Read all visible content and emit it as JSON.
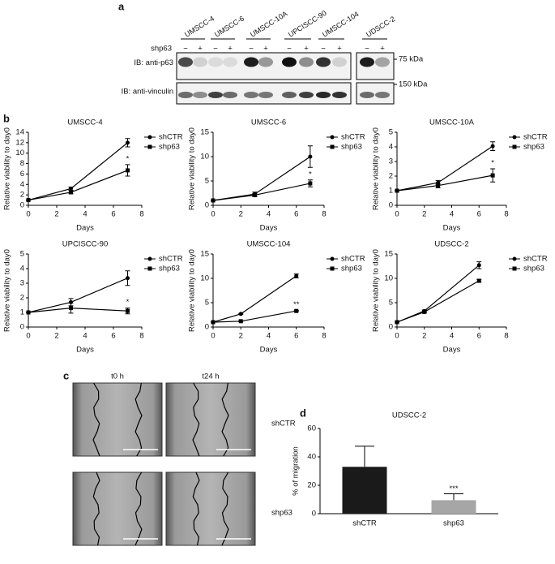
{
  "panels": {
    "a": "a",
    "b": "b",
    "c": "c",
    "d": "d"
  },
  "blot": {
    "cell_lines": [
      "UMSCC-4",
      "UMSCC-6",
      "UMSCC-10A",
      "UPCISCC-90",
      "UMSCC-104",
      "UDSCC-2"
    ],
    "shp63_label": "shp63",
    "lanes": [
      "−",
      "+",
      "−",
      "+",
      "−",
      "+",
      "−",
      "+",
      "−",
      "+",
      "−",
      "+"
    ],
    "rows": [
      {
        "label": "IB: anti-p63",
        "marker": "75 kDa"
      },
      {
        "label": "IB: anti-vinculin",
        "marker": "150 kDa"
      }
    ]
  },
  "migration_images": {
    "columns": [
      "t0 h",
      "t24 h"
    ],
    "rows": [
      "shCTR",
      "shp63"
    ]
  },
  "chart_data": [
    {
      "type": "line",
      "title": "UMSCC-4",
      "x_label": "Days",
      "y_label": "Relative viability to day0",
      "x": [
        0,
        3,
        7
      ],
      "xlim": [
        0,
        8
      ],
      "xticks": [
        0,
        2,
        4,
        6,
        8
      ],
      "ylim": [
        0,
        14
      ],
      "yticks": [
        0,
        2,
        4,
        6,
        8,
        10,
        12,
        14
      ],
      "series": [
        {
          "name": "shCTR",
          "color": "#000000",
          "marker": "circle",
          "values": [
            1,
            3.2,
            12
          ],
          "errors": [
            0,
            0.3,
            0.8
          ]
        },
        {
          "name": "shp63",
          "color": "#000000",
          "marker": "square",
          "values": [
            1,
            2.5,
            6.7
          ],
          "errors": [
            0,
            0.3,
            1.1
          ]
        }
      ],
      "significance": "*"
    },
    {
      "type": "line",
      "title": "UMSCC-6",
      "x_label": "Days",
      "y_label": "Relative viability to day0",
      "x": [
        0,
        3,
        7
      ],
      "xlim": [
        0,
        8
      ],
      "xticks": [
        0,
        2,
        4,
        6,
        8
      ],
      "ylim": [
        0,
        15
      ],
      "yticks": [
        0,
        5,
        10,
        15
      ],
      "series": [
        {
          "name": "shCTR",
          "color": "#000000",
          "marker": "circle",
          "values": [
            1,
            2.3,
            10
          ],
          "errors": [
            0,
            0.4,
            2.2
          ]
        },
        {
          "name": "shp63",
          "color": "#000000",
          "marker": "square",
          "values": [
            1,
            2.1,
            4.5
          ],
          "errors": [
            0,
            0.3,
            0.7
          ]
        }
      ],
      "significance": "*"
    },
    {
      "type": "line",
      "title": "UMSCC-10A",
      "x_label": "Days",
      "y_label": "Relative viability to day0",
      "x": [
        0,
        3,
        7
      ],
      "xlim": [
        0,
        8
      ],
      "xticks": [
        0,
        2,
        4,
        6,
        8
      ],
      "ylim": [
        0,
        5
      ],
      "yticks": [
        0,
        1,
        2,
        3,
        4,
        5
      ],
      "series": [
        {
          "name": "shCTR",
          "color": "#000000",
          "marker": "circle",
          "values": [
            1,
            1.55,
            4.05
          ],
          "errors": [
            0,
            0.15,
            0.3
          ]
        },
        {
          "name": "shp63",
          "color": "#000000",
          "marker": "square",
          "values": [
            1,
            1.35,
            2.05
          ],
          "errors": [
            0,
            0.15,
            0.45
          ]
        }
      ],
      "significance": "*"
    },
    {
      "type": "line",
      "title": "UPCISCC-90",
      "x_label": "Days",
      "y_label": "Relative viability to day0",
      "x": [
        0,
        3,
        7
      ],
      "xlim": [
        0,
        8
      ],
      "xticks": [
        0,
        2,
        4,
        6,
        8
      ],
      "ylim": [
        0,
        5
      ],
      "yticks": [
        0,
        1,
        2,
        3,
        4,
        5
      ],
      "series": [
        {
          "name": "shCTR",
          "color": "#000000",
          "marker": "circle",
          "values": [
            1,
            1.7,
            3.35
          ],
          "errors": [
            0,
            0.25,
            0.5
          ]
        },
        {
          "name": "shp63",
          "color": "#000000",
          "marker": "square",
          "values": [
            1,
            1.3,
            1.1
          ],
          "errors": [
            0,
            0.35,
            0.2
          ]
        }
      ],
      "significance": "*"
    },
    {
      "type": "line",
      "title": "UMSCC-104",
      "x_label": "Days",
      "y_label": "Relative viability to day0",
      "x": [
        0,
        2,
        6
      ],
      "xlim": [
        0,
        8
      ],
      "xticks": [
        0,
        2,
        4,
        6,
        8
      ],
      "ylim": [
        0,
        15
      ],
      "yticks": [
        0,
        5,
        10,
        15
      ],
      "series": [
        {
          "name": "shCTR",
          "color": "#000000",
          "marker": "circle",
          "values": [
            1,
            2.7,
            10.5
          ],
          "errors": [
            0,
            0.1,
            0.4
          ]
        },
        {
          "name": "shp63",
          "color": "#000000",
          "marker": "square",
          "values": [
            1,
            1.2,
            3.3
          ],
          "errors": [
            0,
            0.1,
            0.1
          ]
        }
      ],
      "significance": "**"
    },
    {
      "type": "line",
      "title": "UDSCC-2",
      "x_label": "Days",
      "y_label": "Relative viability to day0",
      "x": [
        0,
        2,
        6
      ],
      "xlim": [
        0,
        8
      ],
      "xticks": [
        0,
        2,
        4,
        6,
        8
      ],
      "ylim": [
        0,
        15
      ],
      "yticks": [
        0,
        5,
        10,
        15
      ],
      "series": [
        {
          "name": "shCTR",
          "color": "#000000",
          "marker": "circle",
          "values": [
            1,
            3.3,
            12.7
          ],
          "errors": [
            0,
            0.2,
            0.7
          ]
        },
        {
          "name": "shp63",
          "color": "#000000",
          "marker": "square",
          "values": [
            1,
            3.1,
            9.5
          ],
          "errors": [
            0,
            0.2,
            0.3
          ]
        }
      ]
    },
    {
      "type": "bar",
      "title": "UDSCC-2",
      "y_label": "% of migration",
      "categories": [
        "shCTR",
        "shp63"
      ],
      "values": [
        33,
        9.5
      ],
      "errors": [
        14.5,
        4.5
      ],
      "colors": [
        "#1a1a1a",
        "#a6a6a6"
      ],
      "ylim": [
        0,
        60
      ],
      "yticks": [
        0,
        20,
        40,
        60
      ],
      "significance": [
        null,
        "***"
      ]
    }
  ]
}
